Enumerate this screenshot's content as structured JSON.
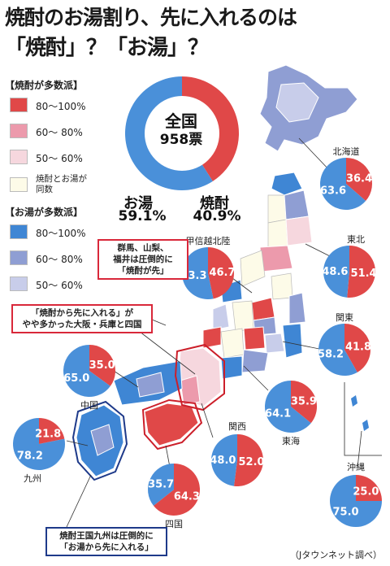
{
  "title": {
    "line1": "焼酎のお湯割り、先に入れるのは",
    "line2": "「焼酎」？「お湯」？"
  },
  "legend": {
    "shochu_header": "【焼酎が多数派】",
    "shochu_items": [
      {
        "label": "80〜100%",
        "color": "#e04848"
      },
      {
        "label": "60〜 80%",
        "color": "#ec9aac"
      },
      {
        "label": "50〜 60%",
        "color": "#f6d7de"
      }
    ],
    "tie_item": {
      "label": "焼酎とお湯が\n同数",
      "color": "#fdfbe8"
    },
    "oyu_header": "【お湯が多数派】",
    "oyu_items": [
      {
        "label": "80〜100%",
        "color": "#3f86d4"
      },
      {
        "label": "60〜 80%",
        "color": "#8f9ed3"
      },
      {
        "label": "50〜 60%",
        "color": "#c8cdea"
      }
    ]
  },
  "colors": {
    "shochu": "#e04848",
    "oyu": "#4a90d9"
  },
  "national": {
    "center_line1": "全国",
    "center_line2": "958票",
    "oyu_label": "お湯",
    "oyu_pct": "59.1%",
    "shochu_label": "焼酎",
    "shochu_pct": "40.9%",
    "oyu": 59.1,
    "shochu": 40.9
  },
  "regions": [
    {
      "name": "北海道",
      "oyu": 63.6,
      "shochu": 36.4
    },
    {
      "name": "東北",
      "oyu": 48.6,
      "shochu": 51.4
    },
    {
      "name": "甲信越北陸",
      "oyu": 53.3,
      "shochu": 46.7
    },
    {
      "name": "関東",
      "oyu": 58.2,
      "shochu": 41.8
    },
    {
      "name": "東海",
      "oyu": 64.1,
      "shochu": 35.9
    },
    {
      "name": "関西",
      "oyu": 48.0,
      "shochu": 52.0
    },
    {
      "name": "中国",
      "oyu": 65.0,
      "shochu": 35.0
    },
    {
      "name": "四国",
      "oyu": 35.7,
      "shochu": 64.3
    },
    {
      "name": "九州",
      "oyu": 78.2,
      "shochu": 21.8
    },
    {
      "name": "沖縄",
      "oyu": 75.0,
      "shochu": 25.0
    }
  ],
  "callouts": {
    "gunma": [
      "群馬、山梨、",
      "福井は圧倒的に",
      "「焼酎が先」"
    ],
    "osaka": [
      "「焼酎から先に入れる」が",
      "やや多かった大阪・兵庫と四国"
    ],
    "kyushu": [
      "焼酎王国九州は圧倒的に",
      "「お湯から先に入れる」"
    ]
  },
  "credit": "（Jタウンネット調べ）"
}
